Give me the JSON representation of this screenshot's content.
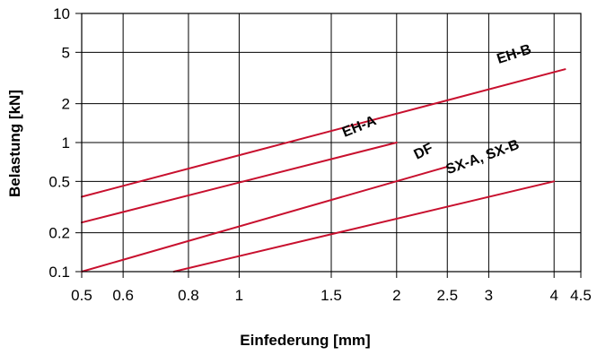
{
  "chart_data": {
    "type": "line",
    "xlabel": "Einfederung [mm]",
    "ylabel": "Belastung [kN]",
    "x_scale": "log",
    "y_scale": "log",
    "xlim": [
      0.5,
      4.5
    ],
    "ylim": [
      0.1,
      10
    ],
    "x_ticks": [
      0.5,
      0.6,
      0.8,
      1,
      1.5,
      2,
      2.5,
      3,
      4,
      4.5
    ],
    "x_tick_labels": [
      "0.5",
      "0.6",
      "0.8",
      "1",
      "1.5",
      "2",
      "2.5",
      "3",
      "4",
      "4.5"
    ],
    "y_ticks": [
      0.1,
      0.2,
      0.5,
      1,
      2,
      5,
      10
    ],
    "y_tick_labels": [
      "0.1",
      "0.2",
      "0.5",
      "1",
      "2",
      "5",
      "10"
    ],
    "grid": true,
    "line_color": "#c8102e",
    "series": [
      {
        "name": "EH-B",
        "x": [
          0.5,
          4.2
        ],
        "y": [
          0.38,
          3.7
        ]
      },
      {
        "name": "EH-A",
        "x": [
          0.5,
          2.0
        ],
        "y": [
          0.24,
          1.0
        ]
      },
      {
        "name": "DF",
        "x": [
          0.5,
          2.5
        ],
        "y": [
          0.1,
          0.65
        ]
      },
      {
        "name": "SX-A, SX-B",
        "x": [
          0.75,
          4.0
        ],
        "y": [
          0.1,
          0.5
        ]
      }
    ]
  }
}
